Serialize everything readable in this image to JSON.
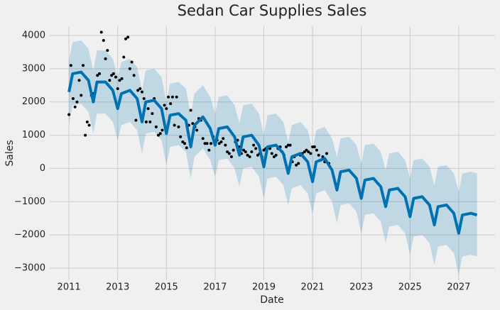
{
  "chart_data": {
    "type": "line",
    "title": "Sedan Car Supplies Sales",
    "x_label": "Date",
    "y_label": "Sales",
    "xlim": [
      2010.21,
      2028.49
    ],
    "ylim": [
      -3363,
      4278
    ],
    "xticks": [
      2011,
      2013,
      2015,
      2017,
      2019,
      2021,
      2023,
      2025,
      2027
    ],
    "yticks": [
      {
        "value": -3000,
        "label": "−3000"
      },
      {
        "value": -2000,
        "label": "−2000"
      },
      {
        "value": -1000,
        "label": "−1000"
      },
      0,
      1000,
      2000,
      3000,
      4000
    ],
    "grid": true,
    "observed": {
      "color": "#000000",
      "x": [
        2011.0,
        2011.08,
        2011.17,
        2011.25,
        2011.33,
        2011.42,
        2011.5,
        2011.58,
        2011.67,
        2011.75,
        2011.83,
        2011.92,
        2012.0,
        2012.08,
        2012.17,
        2012.25,
        2012.33,
        2012.42,
        2012.5,
        2012.58,
        2012.67,
        2012.75,
        2012.83,
        2012.92,
        2013.0,
        2013.08,
        2013.17,
        2013.25,
        2013.33,
        2013.42,
        2013.5,
        2013.58,
        2013.67,
        2013.75,
        2013.83,
        2013.92,
        2014.0,
        2014.08,
        2014.17,
        2014.25,
        2014.33,
        2014.42,
        2014.5,
        2014.58,
        2014.67,
        2014.75,
        2014.83,
        2014.92,
        2015.0,
        2015.08,
        2015.17,
        2015.25,
        2015.33,
        2015.42,
        2015.5,
        2015.58,
        2015.67,
        2015.75,
        2015.83,
        2015.92,
        2016.0,
        2016.08,
        2016.17,
        2016.25,
        2016.33,
        2016.42,
        2016.5,
        2016.58,
        2016.67,
        2016.75,
        2016.83,
        2016.92,
        2017.0,
        2017.08,
        2017.17,
        2017.25,
        2017.33,
        2017.42,
        2017.5,
        2017.58,
        2017.67,
        2017.75,
        2017.83,
        2017.92,
        2018.0,
        2018.08,
        2018.17,
        2018.25,
        2018.33,
        2018.42,
        2018.5,
        2018.58,
        2018.67,
        2018.75,
        2018.83,
        2018.92,
        2019.0,
        2019.08,
        2019.17,
        2019.25,
        2019.33,
        2019.42,
        2019.5,
        2019.58,
        2019.67,
        2019.75,
        2019.83,
        2019.92,
        2020.0,
        2020.08,
        2020.17,
        2020.25,
        2020.33,
        2020.42,
        2020.5,
        2020.58,
        2020.67,
        2020.75,
        2020.83,
        2020.92,
        2021.0,
        2021.08,
        2021.17,
        2021.25,
        2021.33,
        2021.42,
        2021.5,
        2021.58,
        2021.67
      ],
      "values": [
        1620,
        3100,
        2100,
        1850,
        2000,
        2650,
        2200,
        3100,
        1000,
        1400,
        1300,
        2200,
        2250,
        2300,
        2800,
        2850,
        4100,
        3850,
        3300,
        3550,
        2650,
        2800,
        2850,
        2750,
        2400,
        2650,
        2700,
        3350,
        3900,
        3950,
        3000,
        3200,
        2800,
        1450,
        2350,
        2400,
        2300,
        2100,
        1400,
        1800,
        1400,
        1650,
        2100,
        1250,
        1000,
        1050,
        1150,
        1900,
        1800,
        2150,
        1950,
        2150,
        1300,
        2150,
        1250,
        950,
        800,
        750,
        620,
        1300,
        1750,
        1350,
        1250,
        1150,
        1500,
        1450,
        900,
        750,
        750,
        550,
        750,
        950,
        700,
        850,
        750,
        800,
        900,
        700,
        500,
        450,
        350,
        550,
        800,
        850,
        650,
        450,
        550,
        500,
        400,
        350,
        500,
        700,
        600,
        400,
        450,
        350,
        550,
        600,
        650,
        600,
        450,
        350,
        400,
        600,
        650,
        500,
        400,
        650,
        700,
        700,
        200,
        350,
        100,
        150,
        400,
        450,
        500,
        550,
        500,
        450,
        650,
        650,
        550,
        400,
        250,
        350,
        200,
        450,
        150
      ]
    },
    "forecast": {
      "color": "#0072b2",
      "x": [
        2011,
        2011.15,
        2011.5,
        2011.8,
        2012,
        2012.15,
        2012.5,
        2012.8,
        2013,
        2013.15,
        2013.5,
        2013.8,
        2014,
        2014.15,
        2014.5,
        2014.8,
        2015,
        2015.15,
        2015.5,
        2015.8,
        2016,
        2016.15,
        2016.5,
        2016.8,
        2017,
        2017.15,
        2017.5,
        2017.8,
        2018,
        2018.15,
        2018.5,
        2018.8,
        2019,
        2019.15,
        2019.5,
        2019.8,
        2020,
        2020.15,
        2020.5,
        2020.8,
        2021,
        2021.15,
        2021.5,
        2021.8,
        2022,
        2022.15,
        2022.5,
        2022.8,
        2023,
        2023.15,
        2023.5,
        2023.8,
        2024,
        2024.15,
        2024.5,
        2024.8,
        2025,
        2025.15,
        2025.5,
        2025.8,
        2026,
        2026.15,
        2026.5,
        2026.8,
        2027,
        2027.15,
        2027.5,
        2027.75
      ],
      "values": [
        2300,
        2850,
        2900,
        2650,
        2000,
        2600,
        2600,
        2350,
        1800,
        2250,
        2350,
        2100,
        1400,
        2000,
        2050,
        1800,
        1050,
        1600,
        1650,
        1450,
        650,
        1300,
        1550,
        1200,
        700,
        1200,
        1250,
        950,
        400,
        950,
        1000,
        700,
        50,
        650,
        700,
        450,
        -150,
        350,
        450,
        200,
        -400,
        200,
        300,
        -50,
        -650,
        -100,
        -50,
        -300,
        -900,
        -350,
        -300,
        -550,
        -1150,
        -650,
        -600,
        -850,
        -1450,
        -900,
        -850,
        -1100,
        -1700,
        -1150,
        -1100,
        -1350,
        -1950,
        -1400,
        -1350,
        -1400
      ],
      "lower": [
        1350,
        1900,
        1950,
        1700,
        1050,
        1650,
        1650,
        1400,
        850,
        1300,
        1400,
        1150,
        450,
        1050,
        1100,
        850,
        100,
        650,
        700,
        500,
        -300,
        350,
        600,
        250,
        -250,
        250,
        300,
        0,
        -550,
        0,
        50,
        -250,
        -900,
        -300,
        -250,
        -500,
        -1100,
        -600,
        -500,
        -750,
        -1350,
        -750,
        -650,
        -1000,
        -1650,
        -1100,
        -1050,
        -1300,
        -1950,
        -1400,
        -1350,
        -1600,
        -2250,
        -1750,
        -1700,
        -1950,
        -2600,
        -2050,
        -2000,
        -2250,
        -2900,
        -2350,
        -2300,
        -2550,
        -3200,
        -2650,
        -2600,
        -2650
      ],
      "upper": [
        3250,
        3800,
        3850,
        3600,
        2950,
        3550,
        3550,
        3300,
        2750,
        3200,
        3300,
        3050,
        2350,
        2950,
        3000,
        2750,
        2000,
        2550,
        2600,
        2400,
        1600,
        2250,
        2500,
        2150,
        1650,
        2150,
        2200,
        1900,
        1350,
        1900,
        1950,
        1650,
        1000,
        1600,
        1650,
        1400,
        800,
        1300,
        1400,
        1150,
        550,
        1150,
        1250,
        900,
        350,
        900,
        950,
        700,
        150,
        700,
        750,
        500,
        -50,
        450,
        500,
        250,
        -300,
        250,
        300,
        50,
        -500,
        50,
        100,
        -150,
        -700,
        -150,
        -100,
        -150
      ]
    }
  }
}
